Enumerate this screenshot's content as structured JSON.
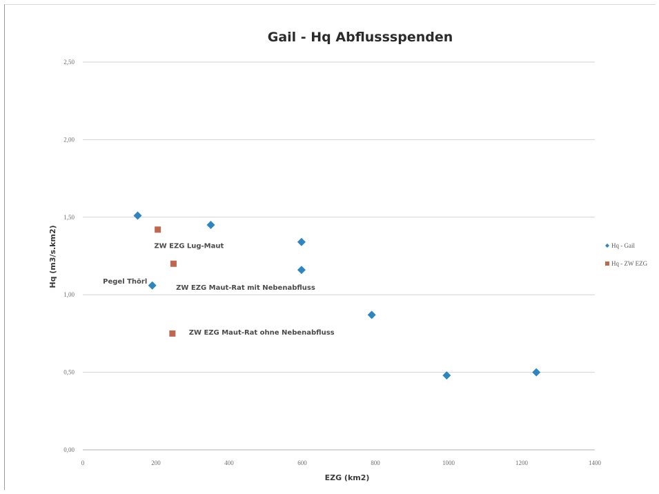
{
  "chart_data": {
    "type": "scatter",
    "title": "Gail - Hq Abflussspenden",
    "xlabel": "EZG  (km2)",
    "ylabel": "Hq  (m3/s.km2)",
    "xlim": [
      0,
      1400
    ],
    "ylim": [
      0,
      2.5
    ],
    "x_ticks": [
      0,
      200,
      400,
      600,
      800,
      1000,
      1200,
      1400
    ],
    "x_tick_labels": [
      "0",
      "200",
      "400",
      "600",
      "800",
      "1000",
      "1200",
      "1400"
    ],
    "y_ticks": [
      0,
      0.5,
      1.0,
      1.5,
      2.0,
      2.5
    ],
    "y_tick_labels": [
      "0,00",
      "0,50",
      "1,00",
      "1,50",
      "2,00",
      "2,50"
    ],
    "grid": "horizontal",
    "legend_position": "right",
    "series": [
      {
        "name": "Hq - Gail",
        "marker": "diamond",
        "color": "#2e86c1",
        "points": [
          {
            "x": 150,
            "y": 1.51
          },
          {
            "x": 190,
            "y": 1.06
          },
          {
            "x": 350,
            "y": 1.45
          },
          {
            "x": 598,
            "y": 1.34
          },
          {
            "x": 598,
            "y": 1.16
          },
          {
            "x": 790,
            "y": 0.87
          },
          {
            "x": 995,
            "y": 0.48
          },
          {
            "x": 1240,
            "y": 0.5
          }
        ]
      },
      {
        "name": "Hq - ZW EZG",
        "marker": "square",
        "color": "#c0674f",
        "points": [
          {
            "x": 205,
            "y": 1.42
          },
          {
            "x": 248,
            "y": 1.2
          },
          {
            "x": 245,
            "y": 0.75
          }
        ]
      }
    ],
    "annotations": [
      {
        "text": "ZW EZG Lug-Maut",
        "x": 195,
        "y": 1.32
      },
      {
        "text": "Pegel Thörl",
        "x": 55,
        "y": 1.09
      },
      {
        "text": "ZW EZG Maut-Rat mit Nebenabfluss",
        "x": 255,
        "y": 1.05
      },
      {
        "text": "ZW EZG Maut-Rat ohne Nebenabfluss",
        "x": 290,
        "y": 0.76
      }
    ]
  }
}
